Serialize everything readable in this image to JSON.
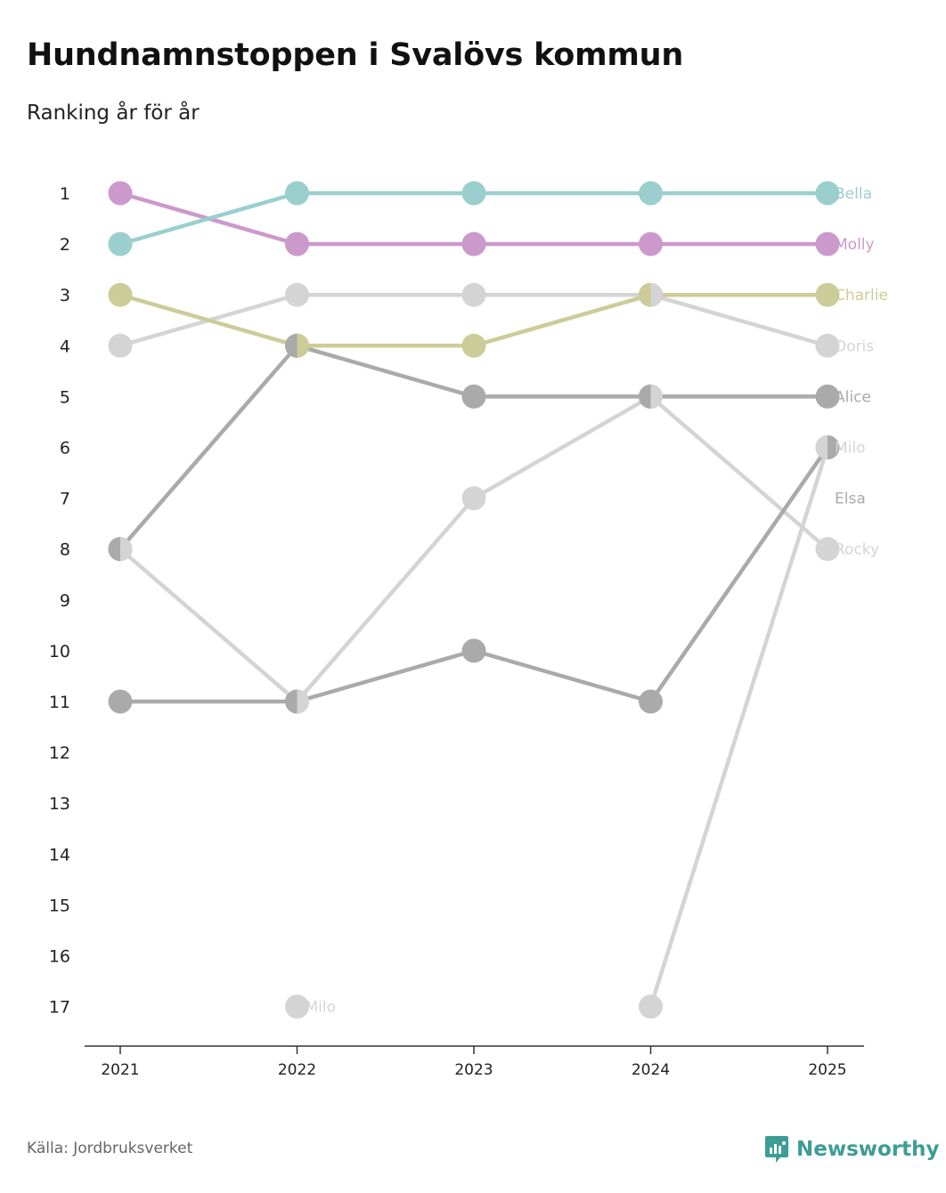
{
  "header": {
    "title": "Hundnamnstoppen i Svalövs kommun",
    "subtitle": "Ranking år för år"
  },
  "footer": {
    "source": "Källa: Jordbruksverket",
    "brand": "Newsworthy",
    "brand_icon": "newsworthy-logo-icon"
  },
  "colors": {
    "Bella": "#9acfcd",
    "Molly": "#cc99cc",
    "Charlie": "#cccc99",
    "Doris": "#d4d4d4",
    "Alice": "#aaaaaa",
    "Rocky": "#d4d4d4",
    "Milo": "#d4d4d4",
    "Elsa": "#aaaaaa",
    "axis": "#333333",
    "text": "#222222",
    "brand": "#3d9d95"
  },
  "chart_data": {
    "type": "bump",
    "title": "Hundnamnstoppen i Svalövs kommun",
    "subtitle": "Ranking år för år",
    "x": [
      "2021",
      "2022",
      "2023",
      "2024",
      "2025"
    ],
    "y_ticks": [
      "1",
      "2",
      "3",
      "4",
      "5",
      "6",
      "7",
      "8",
      "9",
      "10",
      "11",
      "12",
      "13",
      "14",
      "15",
      "16",
      "17"
    ],
    "ylim": [
      1,
      17
    ],
    "y_inverted": true,
    "series": [
      {
        "name": "Bella",
        "ranks": [
          2,
          1,
          1,
          1,
          1
        ]
      },
      {
        "name": "Molly",
        "ranks": [
          1,
          2,
          2,
          2,
          2
        ]
      },
      {
        "name": "Charlie",
        "ranks": [
          3,
          4,
          4,
          3,
          3
        ]
      },
      {
        "name": "Doris",
        "ranks": [
          4,
          3,
          3,
          3,
          4
        ]
      },
      {
        "name": "Alice",
        "ranks": [
          8,
          4,
          5,
          5,
          5
        ]
      },
      {
        "name": "Rocky",
        "ranks": [
          8,
          11,
          7,
          5,
          8
        ]
      },
      {
        "name": "Milo",
        "ranks": [
          null,
          17,
          null,
          17,
          6
        ]
      },
      {
        "name": "Elsa",
        "ranks": [
          11,
          11,
          10,
          11,
          6
        ]
      }
    ],
    "end_labels": [
      {
        "name": "Bella",
        "rank": 1
      },
      {
        "name": "Molly",
        "rank": 2
      },
      {
        "name": "Charlie",
        "rank": 3
      },
      {
        "name": "Doris",
        "rank": 4
      },
      {
        "name": "Alice",
        "rank": 5
      },
      {
        "name": "Milo",
        "rank": 6
      },
      {
        "name": "Elsa",
        "rank": 7
      },
      {
        "name": "Rocky",
        "rank": 8
      }
    ],
    "inline_labels": [
      {
        "name": "Milo",
        "x": "2022",
        "rank": 17
      }
    ]
  }
}
